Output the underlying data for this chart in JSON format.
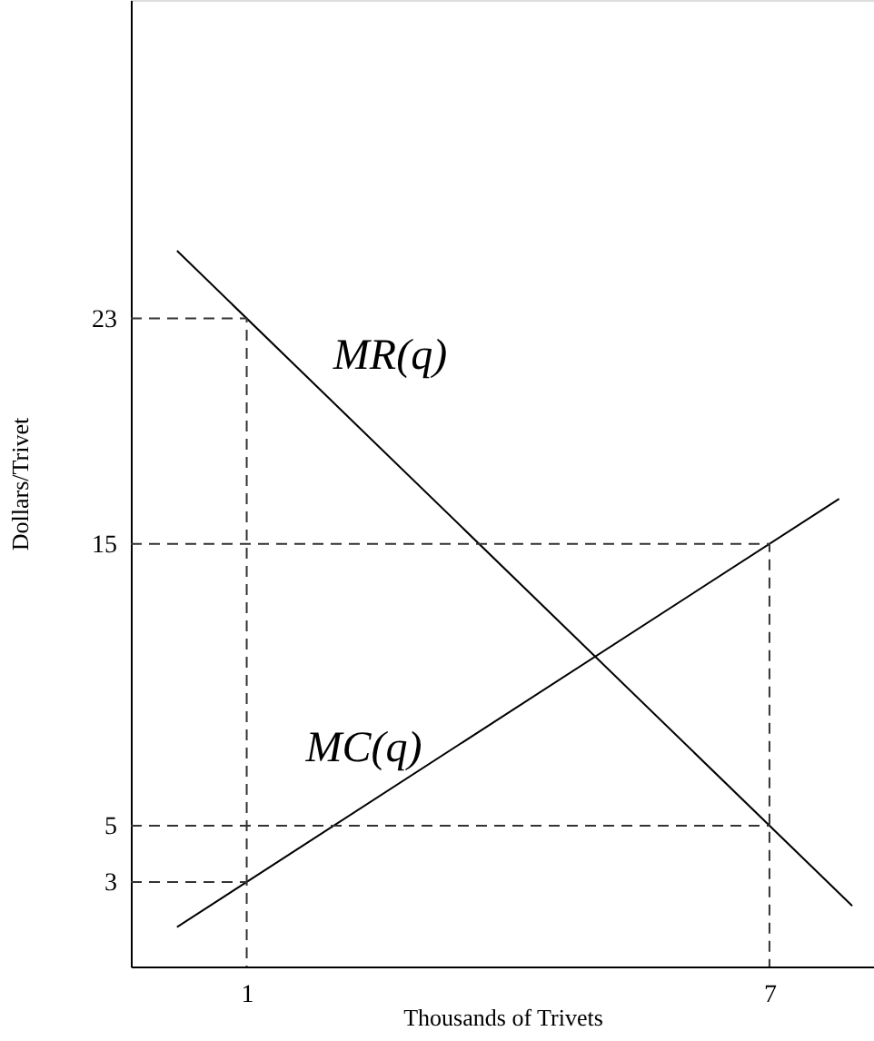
{
  "chart_data": {
    "type": "line",
    "xlabel": "Thousands of Trivets",
    "ylabel": "Dollars/Trivet",
    "xlim": [
      -0.33,
      8.2
    ],
    "ylim": [
      0,
      34.3
    ],
    "xticks": [
      1,
      7
    ],
    "yticks": [
      3,
      5,
      15,
      23
    ],
    "grid": false,
    "marker": "none",
    "series": [
      {
        "name": "MR(q)",
        "color": "#000000",
        "x": [
          0.2,
          7.95
        ],
        "values": [
          25.4,
          2.15
        ]
      },
      {
        "name": "MC(q)",
        "color": "#000000",
        "x": [
          0.2,
          7.8
        ],
        "values": [
          1.4,
          16.6
        ]
      },
      {
        "color": "#333333",
        "line_style": "dashed",
        "x": [
          -0.33,
          1,
          1
        ],
        "values": [
          23,
          23,
          0
        ]
      },
      {
        "color": "#333333",
        "line_style": "dashed",
        "x": [
          -0.33,
          1
        ],
        "values": [
          3,
          3
        ]
      },
      {
        "color": "#333333",
        "line_style": "dashed",
        "x": [
          -0.33,
          7,
          7
        ],
        "values": [
          15,
          15,
          0
        ]
      },
      {
        "color": "#333333",
        "line_style": "dashed",
        "x": [
          -0.33,
          7
        ],
        "values": [
          5,
          5
        ]
      }
    ]
  }
}
